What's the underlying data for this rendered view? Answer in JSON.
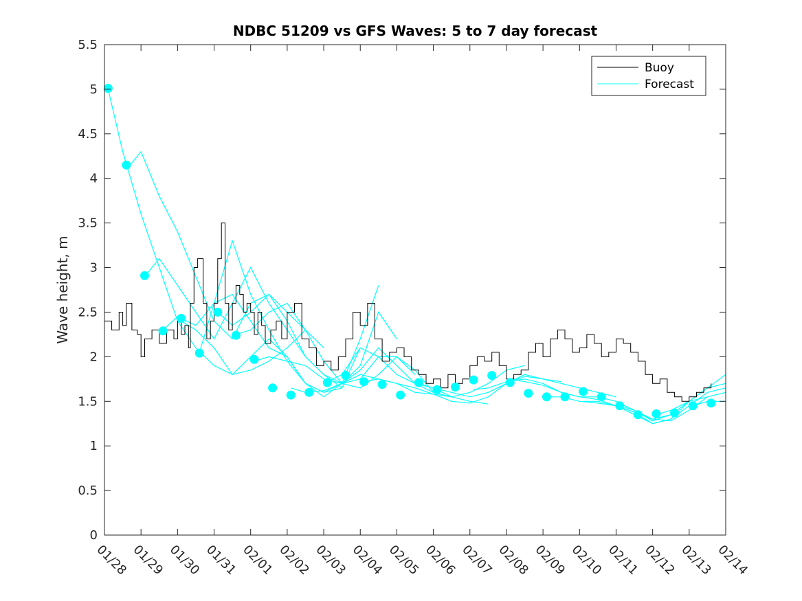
{
  "chart_data": {
    "type": "line",
    "title": "NDBC 51209 vs GFS Waves: 5 to 7 day forecast",
    "xlabel": "",
    "ylabel": "Wave height, m",
    "ylim": [
      0,
      5.5
    ],
    "xlim": [
      0,
      17
    ],
    "yticks": [
      "0",
      "0.5",
      "1",
      "1.5",
      "2",
      "2.5",
      "3",
      "3.5",
      "4",
      "4.5",
      "5",
      "5.5"
    ],
    "xticks": [
      "01/28",
      "01/29",
      "01/30",
      "01/31",
      "02/01",
      "02/02",
      "02/03",
      "02/04",
      "02/05",
      "02/06",
      "02/07",
      "02/08",
      "02/09",
      "02/10",
      "02/11",
      "02/12",
      "02/13",
      "02/14"
    ],
    "legend": {
      "position": "top-right",
      "entries": [
        "Buoy",
        "Forecast"
      ]
    },
    "colors": {
      "buoy": "#000000",
      "forecast": "#00ffff",
      "axis": "#262626"
    },
    "series": [
      {
        "name": "Buoy",
        "x": [
          0,
          0.2,
          0.4,
          0.5,
          0.6,
          0.75,
          0.9,
          1.0,
          1.1,
          1.3,
          1.5,
          1.7,
          1.9,
          2.0,
          2.1,
          2.2,
          2.3,
          2.35,
          2.45,
          2.55,
          2.7,
          2.8,
          2.9,
          3.0,
          3.1,
          3.2,
          3.3,
          3.4,
          3.5,
          3.6,
          3.7,
          3.8,
          3.9,
          4.0,
          4.1,
          4.2,
          4.3,
          4.4,
          4.55,
          4.7,
          4.85,
          5.0,
          5.2,
          5.4,
          5.6,
          5.8,
          6.0,
          6.2,
          6.4,
          6.6,
          6.8,
          7.0,
          7.2,
          7.4,
          7.6,
          7.8,
          8.0,
          8.2,
          8.4,
          8.6,
          8.8,
          9.0,
          9.2,
          9.4,
          9.6,
          9.8,
          10.0,
          10.2,
          10.4,
          10.6,
          10.8,
          11.0,
          11.2,
          11.4,
          11.6,
          11.8,
          12.0,
          12.2,
          12.4,
          12.6,
          12.8,
          13.0,
          13.2,
          13.4,
          13.6,
          13.8,
          14.0,
          14.2,
          14.4,
          14.6,
          14.8,
          15.0,
          15.2,
          15.4,
          15.6,
          15.8,
          16.0,
          16.2,
          16.4,
          16.6
        ],
        "values": [
          2.4,
          2.3,
          2.5,
          2.35,
          2.6,
          2.3,
          2.25,
          2.0,
          2.2,
          2.3,
          2.15,
          2.3,
          2.2,
          2.45,
          2.25,
          2.35,
          2.1,
          2.6,
          3.0,
          3.1,
          2.6,
          2.2,
          2.4,
          2.6,
          3.1,
          3.5,
          2.6,
          2.3,
          2.6,
          2.8,
          2.7,
          2.5,
          2.6,
          2.5,
          2.25,
          2.5,
          2.35,
          2.15,
          2.3,
          2.4,
          2.2,
          2.5,
          2.6,
          2.2,
          2.1,
          1.9,
          1.95,
          1.85,
          2.0,
          2.2,
          2.5,
          2.35,
          2.6,
          2.2,
          1.95,
          2.05,
          2.1,
          2.0,
          1.85,
          1.8,
          1.7,
          1.75,
          1.65,
          1.8,
          1.7,
          1.75,
          1.9,
          2.0,
          1.95,
          2.05,
          1.9,
          1.75,
          1.8,
          1.85,
          2.05,
          2.15,
          2.0,
          2.2,
          2.3,
          2.2,
          2.05,
          2.1,
          2.25,
          2.15,
          2.0,
          2.05,
          2.2,
          2.15,
          2.05,
          1.95,
          1.8,
          1.7,
          1.75,
          1.6,
          1.55,
          1.5,
          1.55,
          1.6,
          1.65,
          1.7
        ]
      },
      {
        "name": "Forecast",
        "runs": [
          {
            "x": [
              0.1,
              0.5,
              1.0,
              1.5,
              2.0,
              2.5,
              3.0,
              3.5,
              4.0,
              4.5,
              5.0,
              5.5
            ],
            "values": [
              5.0,
              4.3,
              3.6,
              3.0,
              2.4,
              2.1,
              1.9,
              1.8,
              1.85,
              1.95,
              2.1,
              2.3
            ]
          },
          {
            "x": [
              0.6,
              1.0,
              1.5,
              2.0,
              2.5,
              3.0,
              3.5,
              4.0,
              4.5,
              5.0,
              5.5,
              6.0
            ],
            "values": [
              4.1,
              4.3,
              3.8,
              3.4,
              2.9,
              2.4,
              2.2,
              2.6,
              2.7,
              2.5,
              2.3,
              2.1
            ]
          },
          {
            "x": [
              1.1,
              1.5,
              2.0,
              2.5,
              3.0,
              3.5,
              4.0,
              4.5,
              5.0,
              5.5,
              6.0,
              6.5
            ],
            "values": [
              2.9,
              3.1,
              2.8,
              2.5,
              2.2,
              2.6,
              3.0,
              2.6,
              2.3,
              2.0,
              1.8,
              1.65
            ]
          },
          {
            "x": [
              1.6,
              2.0,
              2.5,
              3.0,
              3.5,
              4.0,
              4.5,
              5.0,
              5.5,
              6.0,
              6.5,
              7.0
            ],
            "values": [
              2.3,
              2.45,
              2.35,
              2.6,
              2.7,
              2.4,
              2.1,
              2.0,
              1.7,
              1.6,
              1.65,
              2.1
            ]
          },
          {
            "x": [
              2.1,
              2.5,
              3.0,
              3.5,
              4.0,
              4.5,
              5.0,
              5.5,
              6.0,
              6.5,
              7.0,
              7.5
            ],
            "values": [
              2.4,
              2.3,
              2.1,
              1.8,
              2.0,
              2.2,
              2.0,
              1.7,
              1.55,
              1.7,
              2.2,
              2.8
            ]
          },
          {
            "x": [
              2.6,
              3.0,
              3.5,
              4.0,
              4.5,
              5.0,
              5.5,
              6.0,
              6.5,
              7.0,
              7.5,
              8.0
            ],
            "values": [
              2.05,
              2.6,
              3.3,
              2.7,
              2.3,
              1.95,
              1.7,
              1.6,
              1.7,
              1.9,
              2.5,
              2.2
            ]
          },
          {
            "x": [
              3.1,
              3.5,
              4.0,
              4.5,
              5.0,
              5.5,
              6.0,
              6.5,
              7.0,
              7.5,
              8.0,
              8.5
            ],
            "values": [
              2.5,
              2.35,
              2.5,
              2.7,
              2.4,
              2.0,
              1.8,
              1.7,
              1.75,
              2.0,
              2.0,
              1.8
            ]
          },
          {
            "x": [
              3.6,
              4.0,
              4.5,
              5.0,
              5.5,
              6.0,
              6.5,
              7.0,
              7.5,
              8.0,
              8.5,
              9.0
            ],
            "values": [
              2.25,
              2.3,
              2.5,
              2.6,
              2.3,
              1.95,
              1.7,
              1.65,
              1.8,
              2.0,
              1.85,
              1.6
            ]
          },
          {
            "x": [
              4.1,
              4.5,
              5.0,
              5.5,
              6.0,
              6.5,
              7.0,
              7.5,
              8.0,
              8.5,
              9.0,
              9.5
            ],
            "values": [
              1.95,
              2.0,
              1.95,
              1.9,
              1.75,
              1.7,
              1.85,
              2.1,
              1.9,
              1.7,
              1.6,
              1.55
            ]
          },
          {
            "x": [
              5.1,
              5.5,
              6.0,
              6.5,
              7.0,
              7.5,
              8.0,
              8.5,
              9.0,
              9.5,
              10.0,
              10.5
            ],
            "values": [
              1.65,
              1.6,
              1.62,
              1.7,
              1.8,
              1.75,
              1.7,
              1.6,
              1.58,
              1.55,
              1.5,
              1.47
            ]
          },
          {
            "x": [
              6.1,
              6.5,
              7.0,
              7.5,
              8.0,
              8.5,
              9.0,
              9.5,
              10.0,
              10.5,
              11.0,
              11.5
            ],
            "values": [
              1.72,
              1.8,
              2.1,
              2.0,
              1.8,
              1.7,
              1.65,
              1.55,
              1.6,
              1.7,
              1.85,
              1.9
            ]
          },
          {
            "x": [
              7.1,
              7.5,
              8.0,
              8.5,
              9.0,
              9.5,
              10.0,
              10.5,
              11.0,
              11.5,
              12.0,
              12.5
            ],
            "values": [
              1.72,
              1.75,
              1.7,
              1.65,
              1.58,
              1.5,
              1.48,
              1.55,
              1.7,
              1.8,
              1.75,
              1.72
            ]
          },
          {
            "x": [
              8.6,
              9.0,
              9.5,
              10.0,
              10.5,
              11.0,
              11.5,
              12.0,
              12.5,
              13.0,
              13.5,
              14.0
            ],
            "values": [
              1.7,
              1.65,
              1.6,
              1.55,
              1.6,
              1.7,
              1.78,
              1.75,
              1.7,
              1.65,
              1.6,
              1.55
            ]
          },
          {
            "x": [
              10.1,
              10.5,
              11.0,
              11.5,
              12.0,
              12.5,
              13.0,
              13.5,
              14.0,
              14.5,
              15.0,
              15.5
            ],
            "values": [
              1.63,
              1.65,
              1.72,
              1.75,
              1.7,
              1.6,
              1.55,
              1.52,
              1.45,
              1.38,
              1.3,
              1.35
            ]
          },
          {
            "x": [
              11.1,
              11.5,
              12.0,
              12.5,
              13.0,
              13.5,
              14.0,
              14.5,
              15.0,
              15.5,
              16.0,
              16.5
            ],
            "values": [
              1.75,
              1.72,
              1.68,
              1.6,
              1.55,
              1.55,
              1.5,
              1.4,
              1.3,
              1.28,
              1.4,
              1.55
            ]
          },
          {
            "x": [
              12.1,
              12.5,
              13.0,
              13.5,
              14.0,
              14.5,
              15.0,
              15.5,
              16.0,
              16.5,
              17.0
            ],
            "values": [
              1.55,
              1.55,
              1.5,
              1.48,
              1.45,
              1.35,
              1.25,
              1.3,
              1.5,
              1.65,
              1.7
            ]
          },
          {
            "x": [
              13.1,
              13.5,
              14.0,
              14.5,
              15.0,
              15.5,
              16.0,
              16.5,
              17.0
            ],
            "values": [
              1.5,
              1.5,
              1.45,
              1.38,
              1.25,
              1.3,
              1.45,
              1.6,
              1.65
            ]
          },
          {
            "x": [
              14.1,
              14.5,
              15.0,
              15.5,
              16.0,
              16.5,
              17.0
            ],
            "values": [
              1.45,
              1.4,
              1.28,
              1.35,
              1.5,
              1.65,
              1.8
            ]
          },
          {
            "x": [
              15.1,
              15.5,
              16.0,
              16.5,
              17.0
            ],
            "values": [
              1.35,
              1.4,
              1.5,
              1.55,
              1.6
            ]
          },
          {
            "x": [
              16.1,
              16.5,
              17.0
            ],
            "values": [
              1.45,
              1.5,
              1.5
            ]
          }
        ],
        "markers": {
          "x": [
            0.1,
            0.6,
            1.1,
            1.6,
            2.1,
            2.6,
            3.1,
            3.6,
            4.1,
            4.6,
            5.1,
            5.6,
            6.1,
            6.6,
            7.1,
            7.6,
            8.1,
            8.6,
            9.1,
            9.6,
            10.1,
            10.6,
            11.1,
            11.6,
            12.1,
            12.6,
            13.1,
            13.6,
            14.1,
            14.6,
            15.1,
            15.6,
            16.1,
            16.6
          ],
          "values": [
            5.01,
            4.15,
            2.91,
            2.29,
            2.43,
            2.04,
            2.5,
            2.24,
            1.97,
            1.65,
            1.57,
            1.6,
            1.71,
            1.79,
            1.72,
            1.69,
            1.57,
            1.71,
            1.63,
            1.66,
            1.74,
            1.79,
            1.71,
            1.59,
            1.55,
            1.55,
            1.61,
            1.55,
            1.45,
            1.35,
            1.36,
            1.37,
            1.45,
            1.48
          ]
        }
      }
    ]
  }
}
